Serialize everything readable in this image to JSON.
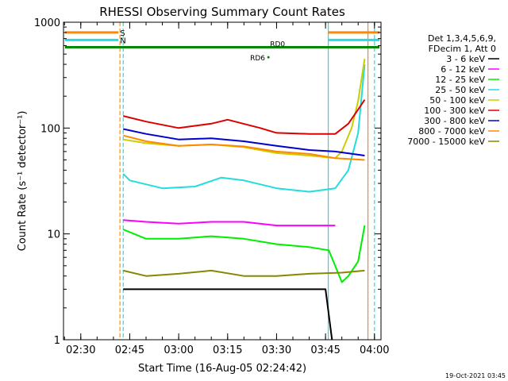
{
  "chart_data": {
    "type": "line",
    "title": "RHESSI Observing Summary Count Rates",
    "xlabel": "Start Time (16-Aug-05 02:24:42)",
    "ylabel": "Count Rate (s⁻¹ detector⁻¹)",
    "footer_date": "19-Oct-2021 03:45",
    "xlim": [
      "02:24:42",
      "04:02:00"
    ],
    "ylim": [
      1,
      1000
    ],
    "yscale": "log",
    "x_ticks": [
      "02:30",
      "02:45",
      "03:00",
      "03:15",
      "03:30",
      "03:45",
      "04:00"
    ],
    "y_ticks": [
      {
        "value": 1,
        "label": "1"
      },
      {
        "value": 10,
        "label": "10"
      },
      {
        "value": 100,
        "label": "100"
      },
      {
        "value": 1000,
        "label": "1000"
      }
    ],
    "legend": {
      "position": "right",
      "header_lines": [
        "Det 1,3,4,5,6,9,",
        "FDecim 1, Att 0"
      ],
      "entries": [
        {
          "label": "3 - 6 keV",
          "color": "#000000"
        },
        {
          "label": "6 - 12 keV",
          "color": "#ff00ff"
        },
        {
          "label": "12 - 25 keV",
          "color": "#00ee00"
        },
        {
          "label": "25 - 50 keV",
          "color": "#22dddd"
        },
        {
          "label": "50 - 100 keV",
          "color": "#cccc00"
        },
        {
          "label": "100 - 300 keV",
          "color": "#dd0000"
        },
        {
          "label": "300 - 800 keV",
          "color": "#0000cc"
        },
        {
          "label": "800 - 7000 keV",
          "color": "#ff8800"
        },
        {
          "label": "7000 - 15000 keV",
          "color": "#888800"
        }
      ]
    },
    "flags": [
      {
        "label": "S",
        "color": "#ff8800",
        "value": 800
      },
      {
        "label": "N",
        "color": "#22dddd",
        "value": 680
      },
      {
        "label": "RD0",
        "color": "#008800",
        "value": 580
      },
      {
        "label": "RD6",
        "color": "#008800",
        "value": 500
      }
    ],
    "vertical_lines": [
      {
        "time": "02:42:00",
        "color": "#ff8800",
        "style": "dashed"
      },
      {
        "time": "02:43:00",
        "color": "#22dddd",
        "style": "dashed"
      },
      {
        "time": "03:45:50",
        "color": "#22dddd",
        "style": "solid"
      },
      {
        "time": "03:58:00",
        "color": "#ff8800",
        "style": "solid"
      },
      {
        "time": "04:00:00",
        "color": "#22dddd",
        "style": "dashed"
      }
    ],
    "series": [
      {
        "name": "3 - 6 keV",
        "color": "#000000",
        "x": [
          "02:43",
          "02:50",
          "03:00",
          "03:10",
          "03:20",
          "03:30",
          "03:40",
          "03:45",
          "03:47"
        ],
        "y": [
          3,
          3,
          3,
          3,
          3,
          3,
          3,
          3,
          1
        ]
      },
      {
        "name": "6 - 12 keV",
        "color": "#ff00ff",
        "x": [
          "02:43",
          "02:50",
          "03:00",
          "03:10",
          "03:20",
          "03:30",
          "03:40",
          "03:48"
        ],
        "y": [
          13.5,
          13,
          12.5,
          13,
          13,
          12,
          12,
          12
        ]
      },
      {
        "name": "12 - 25 keV",
        "color": "#00ee00",
        "x": [
          "02:43",
          "02:50",
          "03:00",
          "03:10",
          "03:20",
          "03:30",
          "03:40",
          "03:46",
          "03:50",
          "03:52",
          "03:55",
          "03:57"
        ],
        "y": [
          11,
          9,
          9,
          9.5,
          9,
          8,
          7.5,
          7,
          3.5,
          4,
          5.5,
          12
        ]
      },
      {
        "name": "25 - 50 keV",
        "color": "#22dddd",
        "x": [
          "02:43",
          "02:45",
          "02:55",
          "03:05",
          "03:13",
          "03:20",
          "03:30",
          "03:40",
          "03:48",
          "03:52",
          "03:55",
          "03:57"
        ],
        "y": [
          37,
          32,
          27,
          28,
          34,
          32,
          27,
          25,
          27,
          40,
          90,
          400
        ]
      },
      {
        "name": "50 - 100 keV",
        "color": "#cccc00",
        "x": [
          "02:43",
          "02:50",
          "03:00",
          "03:10",
          "03:20",
          "03:30",
          "03:40",
          "03:48",
          "03:50",
          "03:53",
          "03:55",
          "03:57"
        ],
        "y": [
          78,
          72,
          68,
          70,
          66,
          58,
          55,
          52,
          60,
          100,
          180,
          450
        ]
      },
      {
        "name": "100 - 300 keV",
        "color": "#dd0000",
        "x": [
          "02:43",
          "02:50",
          "03:00",
          "03:10",
          "03:15",
          "03:25",
          "03:30",
          "03:40",
          "03:48",
          "03:52",
          "03:55",
          "03:57"
        ],
        "y": [
          130,
          115,
          100,
          110,
          120,
          100,
          90,
          88,
          88,
          110,
          150,
          185
        ]
      },
      {
        "name": "300 - 800 keV",
        "color": "#0000cc",
        "x": [
          "02:43",
          "02:50",
          "03:00",
          "03:10",
          "03:20",
          "03:30",
          "03:40",
          "03:48",
          "03:57"
        ],
        "y": [
          98,
          88,
          78,
          80,
          75,
          68,
          62,
          60,
          55
        ]
      },
      {
        "name": "800 - 7000 keV",
        "color": "#ff8800",
        "x": [
          "02:43",
          "02:50",
          "03:00",
          "03:10",
          "03:20",
          "03:30",
          "03:40",
          "03:48",
          "03:57"
        ],
        "y": [
          85,
          75,
          68,
          70,
          67,
          60,
          57,
          52,
          50
        ]
      },
      {
        "name": "7000 - 15000 keV",
        "color": "#888800",
        "x": [
          "02:43",
          "02:50",
          "03:00",
          "03:10",
          "03:20",
          "03:30",
          "03:40",
          "03:50",
          "03:57"
        ],
        "y": [
          4.5,
          4,
          4.2,
          4.5,
          4,
          4,
          4.2,
          4.3,
          4.5
        ]
      }
    ]
  }
}
